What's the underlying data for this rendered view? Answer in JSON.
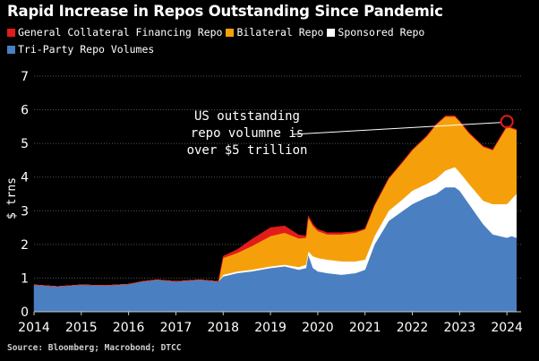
{
  "title": "Rapid Increase in Repos Outstanding Since Pandemic",
  "source": "Source: Bloomberg; Macrobond; DTCC",
  "chart_data": {
    "type": "area",
    "stacked": true,
    "ylabel": "$ trns",
    "ylim": [
      0,
      7
    ],
    "xlim": [
      2014.0,
      2024.3
    ],
    "x_ticks": [
      2014,
      2015,
      2016,
      2017,
      2018,
      2019,
      2020,
      2021,
      2022,
      2023,
      2024
    ],
    "y_ticks": [
      0,
      1,
      2,
      3,
      4,
      5,
      6,
      7
    ],
    "legend_placement": "top-left",
    "annotation": {
      "text_lines": [
        "US outstanding",
        "repo volumne is",
        "over $5 trillion"
      ],
      "point": [
        2024.0,
        5.65
      ]
    },
    "x": [
      2014.0,
      2014.5,
      2015.0,
      2015.5,
      2016.0,
      2016.3,
      2016.6,
      2017.0,
      2017.5,
      2017.9,
      2018.0,
      2018.3,
      2018.6,
      2019.0,
      2019.3,
      2019.6,
      2019.75,
      2019.8,
      2019.9,
      2020.0,
      2020.2,
      2020.5,
      2020.8,
      2021.0,
      2021.2,
      2021.5,
      2021.8,
      2022.0,
      2022.3,
      2022.5,
      2022.7,
      2022.9,
      2023.0,
      2023.2,
      2023.5,
      2023.7,
      2024.0,
      2024.1,
      2024.2
    ],
    "series": [
      {
        "name": "Tri-Party Repo Volumes",
        "color": "#4a7fc1",
        "values": [
          0.8,
          0.75,
          0.8,
          0.78,
          0.82,
          0.9,
          0.95,
          0.9,
          0.95,
          0.9,
          1.05,
          1.15,
          1.2,
          1.3,
          1.35,
          1.25,
          1.3,
          1.7,
          1.3,
          1.2,
          1.15,
          1.1,
          1.15,
          1.25,
          2.0,
          2.7,
          3.0,
          3.2,
          3.4,
          3.5,
          3.7,
          3.7,
          3.6,
          3.2,
          2.6,
          2.3,
          2.2,
          2.25,
          2.2
        ]
      },
      {
        "name": "Sponsored Repo",
        "color": "#ffffff",
        "values": [
          0,
          0,
          0,
          0,
          0,
          0,
          0,
          0,
          0,
          0,
          0.05,
          0.05,
          0.05,
          0.05,
          0.05,
          0.08,
          0.1,
          0.1,
          0.35,
          0.4,
          0.4,
          0.4,
          0.35,
          0.3,
          0.25,
          0.3,
          0.35,
          0.4,
          0.4,
          0.45,
          0.5,
          0.6,
          0.55,
          0.6,
          0.7,
          0.9,
          1.0,
          1.1,
          1.3
        ]
      },
      {
        "name": "Bilateral Repo",
        "color": "#f5a00b",
        "values": [
          0,
          0,
          0,
          0,
          0,
          0,
          0,
          0,
          0,
          0,
          0.5,
          0.55,
          0.7,
          0.9,
          0.95,
          0.85,
          0.8,
          1.0,
          0.9,
          0.8,
          0.75,
          0.8,
          0.85,
          0.9,
          0.9,
          0.95,
          1.1,
          1.2,
          1.4,
          1.6,
          1.6,
          1.5,
          1.5,
          1.5,
          1.6,
          1.6,
          2.3,
          2.1,
          1.9
        ]
      },
      {
        "name": "General Collateral Financing Repo",
        "color": "#e21b1b",
        "values": [
          0,
          0,
          0,
          0,
          0,
          0,
          0,
          0,
          0,
          0,
          0.05,
          0.1,
          0.2,
          0.25,
          0.2,
          0.1,
          0.05,
          0.05,
          0.05,
          0.05,
          0.05,
          0.05,
          0.03,
          0.02,
          0.02,
          0.02,
          0.02,
          0.02,
          0.02,
          0.02,
          0.02,
          0.02,
          0.02,
          0.02,
          0.02,
          0.02,
          0.02,
          0.02,
          0.02
        ]
      }
    ]
  },
  "legend": [
    {
      "label": "General Collateral Financing Repo",
      "color": "#e21b1b"
    },
    {
      "label": "Bilateral Repo",
      "color": "#f5a00b"
    },
    {
      "label": "Sponsored Repo",
      "color": "#ffffff"
    },
    {
      "label": "Tri-Party Repo Volumes",
      "color": "#4a7fc1"
    }
  ]
}
